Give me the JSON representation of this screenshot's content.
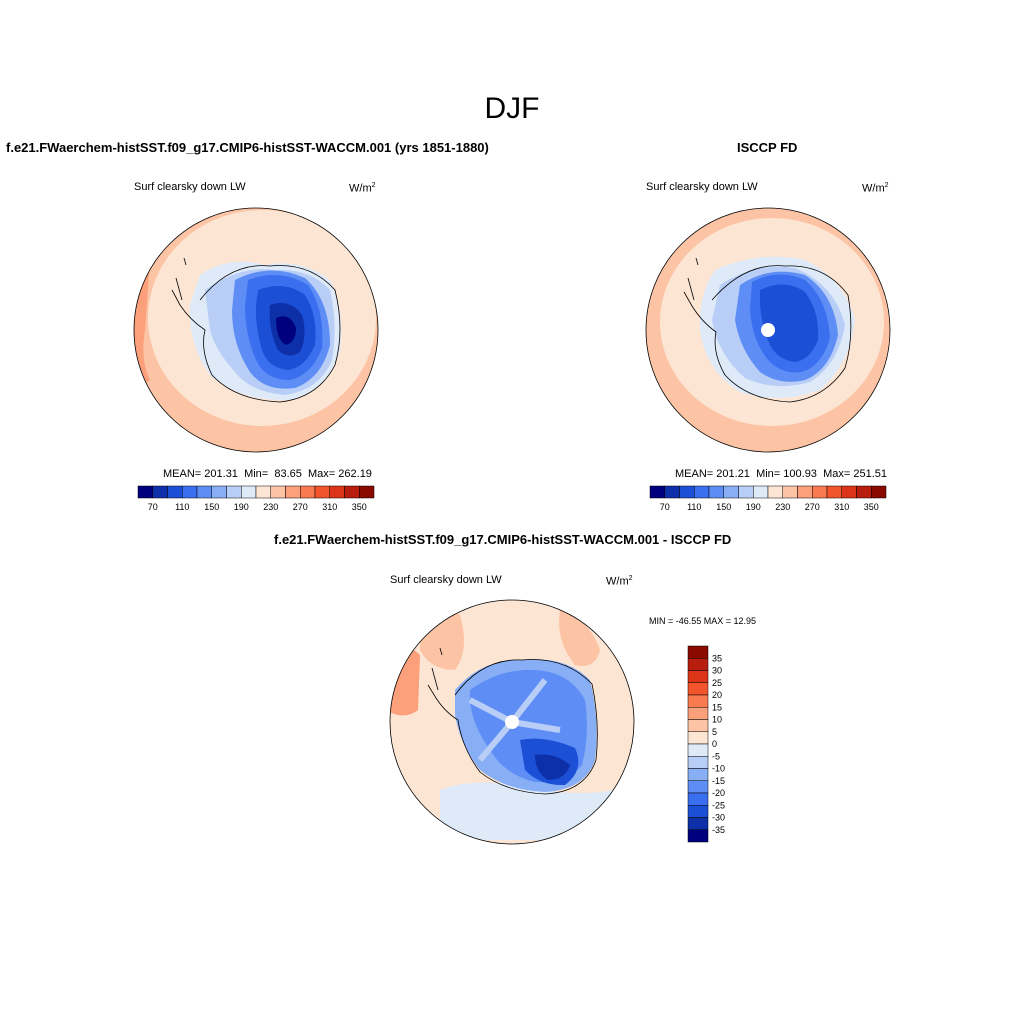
{
  "figure": {
    "title": "DJF"
  },
  "panels": [
    {
      "title": "f.e21.FWaerchem-histSST.f09_g17.CMIP6-histSST-WACCM.001 (yrs 1851-1880)",
      "variable": "Surf clearsky down LW",
      "units": "W/m",
      "units_sup": "2",
      "stats": {
        "mean_label": "MEAN=",
        "mean": "201.31",
        "min_label": "Min=",
        "min": "83.65",
        "max_label": "Max=",
        "max": "262.19"
      }
    },
    {
      "title": "ISCCP FD",
      "variable": "Surf clearsky down LW",
      "units": "W/m",
      "units_sup": "2",
      "stats": {
        "mean_label": "MEAN=",
        "mean": "201.21",
        "min_label": "Min=",
        "min": "100.93",
        "max_label": "Max=",
        "max": "251.51"
      }
    },
    {
      "title": "f.e21.FWaerchem-histSST.f09_g17.CMIP6-histSST-WACCM.001 - ISCCP FD",
      "variable": "Surf clearsky down LW",
      "units": "W/m",
      "units_sup": "2",
      "stats": {
        "minmax_text": "MIN = -46.55 MAX =  12.95"
      }
    }
  ],
  "colorbar_abs": {
    "ticks": [
      "70",
      "110",
      "150",
      "190",
      "230",
      "270",
      "310",
      "350"
    ],
    "colors": [
      "#00007f",
      "#0d2fa8",
      "#1a4fd6",
      "#3a6ff0",
      "#5e8ef5",
      "#88aff5",
      "#b8cef7",
      "#dfeaf9",
      "#fde5d3",
      "#fcc4a5",
      "#fba07a",
      "#f97a4f",
      "#f2542b",
      "#db3416",
      "#b81e0d",
      "#8b0a00"
    ]
  },
  "colorbar_diff": {
    "ticks": [
      "35",
      "30",
      "25",
      "20",
      "15",
      "10",
      "5",
      "0",
      "-5",
      "-10",
      "-15",
      "-20",
      "-25",
      "-30",
      "-35"
    ],
    "colors": [
      "#8b0a00",
      "#b81e0d",
      "#db3416",
      "#f2542b",
      "#f97a4f",
      "#fba07a",
      "#fcc4a5",
      "#fde5d3",
      "#dfeaf9",
      "#b8cef7",
      "#88aff5",
      "#5e8ef5",
      "#3a6ff0",
      "#1a4fd6",
      "#0d2fa8",
      "#00007f"
    ]
  }
}
